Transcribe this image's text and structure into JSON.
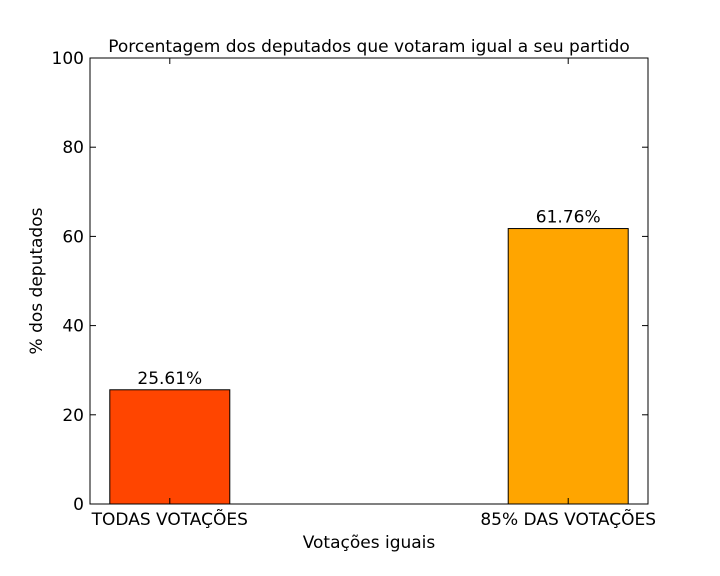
{
  "chart_data": {
    "type": "bar",
    "title": "Porcentagem dos deputados que votaram igual a seu partido",
    "xlabel": "Votações iguais",
    "ylabel": "% dos deputados",
    "categories": [
      "TODAS VOTAÇÕES",
      "85% DAS VOTAÇÕES"
    ],
    "values": [
      25.61,
      61.76
    ],
    "data_labels": [
      "25.61%",
      "61.76%"
    ],
    "colors": [
      "#FF4500",
      "#FFA500"
    ],
    "ylim": [
      0,
      100
    ],
    "yticks": [
      "0",
      "20",
      "40",
      "60",
      "80",
      "100"
    ],
    "grid": false,
    "legend": "none"
  }
}
